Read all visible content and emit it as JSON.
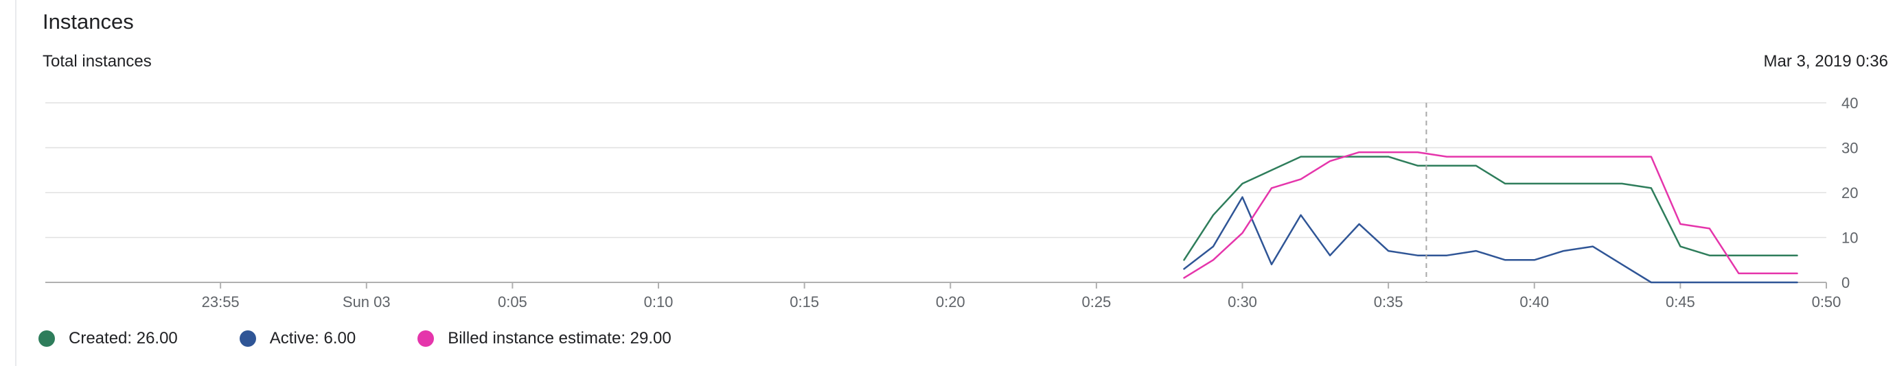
{
  "header": {
    "title": "Instances",
    "subtitle": "Total instances",
    "timestamp": "Mar 3, 2019 0:36"
  },
  "colors": {
    "created": "#2e7d5b",
    "active": "#2f5596",
    "billed": "#e535ab",
    "grid": "#e0e0e0",
    "axis": "#b0b0b0",
    "hover": "#a8a8a8"
  },
  "legend": [
    {
      "key": "created",
      "label": "Created: 26.00"
    },
    {
      "key": "active",
      "label": "Active: 6.00"
    },
    {
      "key": "billed",
      "label": "Billed instance estimate: 29.00"
    }
  ],
  "chart_data": {
    "type": "line",
    "x_unit": "minutes",
    "xlim": [
      -11,
      50
    ],
    "ylim": [
      0,
      40
    ],
    "y_ticks": [
      0,
      10,
      20,
      30,
      40
    ],
    "x_ticks": [
      {
        "value": -5,
        "label": "23:55"
      },
      {
        "value": 0,
        "label": "Sun 03"
      },
      {
        "value": 5,
        "label": "0:05"
      },
      {
        "value": 10,
        "label": "0:10"
      },
      {
        "value": 15,
        "label": "0:15"
      },
      {
        "value": 20,
        "label": "0:20"
      },
      {
        "value": 25,
        "label": "0:25"
      },
      {
        "value": 30,
        "label": "0:30"
      },
      {
        "value": 35,
        "label": "0:35"
      },
      {
        "value": 40,
        "label": "0:40"
      },
      {
        "value": 45,
        "label": "0:45"
      },
      {
        "value": 50,
        "label": "0:50"
      }
    ],
    "grid": true,
    "hover_x": 36.3,
    "series": [
      {
        "key": "created",
        "x": [
          28,
          29,
          30,
          31,
          32,
          33,
          34,
          35,
          36,
          37,
          38,
          39,
          40,
          41,
          42,
          43,
          44,
          45,
          46,
          47,
          48,
          49
        ],
        "y": [
          5,
          15,
          22,
          25,
          28,
          28,
          28,
          28,
          26,
          26,
          26,
          22,
          22,
          22,
          22,
          22,
          21,
          8,
          6,
          6,
          6,
          6
        ]
      },
      {
        "key": "active",
        "x": [
          28,
          29,
          30,
          31,
          32,
          33,
          34,
          35,
          36,
          37,
          38,
          39,
          40,
          41,
          42,
          43,
          44,
          45,
          46,
          47,
          48,
          49
        ],
        "y": [
          3,
          8,
          19,
          4,
          15,
          6,
          13,
          7,
          6,
          6,
          7,
          5,
          5,
          7,
          8,
          4,
          0,
          0,
          0,
          0,
          0,
          0
        ]
      },
      {
        "key": "billed",
        "x": [
          28,
          29,
          30,
          31,
          32,
          33,
          34,
          35,
          36,
          37,
          38,
          39,
          40,
          41,
          42,
          43,
          44,
          45,
          46,
          47,
          48,
          49
        ],
        "y": [
          1,
          5,
          11,
          21,
          23,
          27,
          29,
          29,
          29,
          28,
          28,
          28,
          28,
          28,
          28,
          28,
          28,
          13,
          12,
          2,
          2,
          2
        ]
      }
    ]
  }
}
